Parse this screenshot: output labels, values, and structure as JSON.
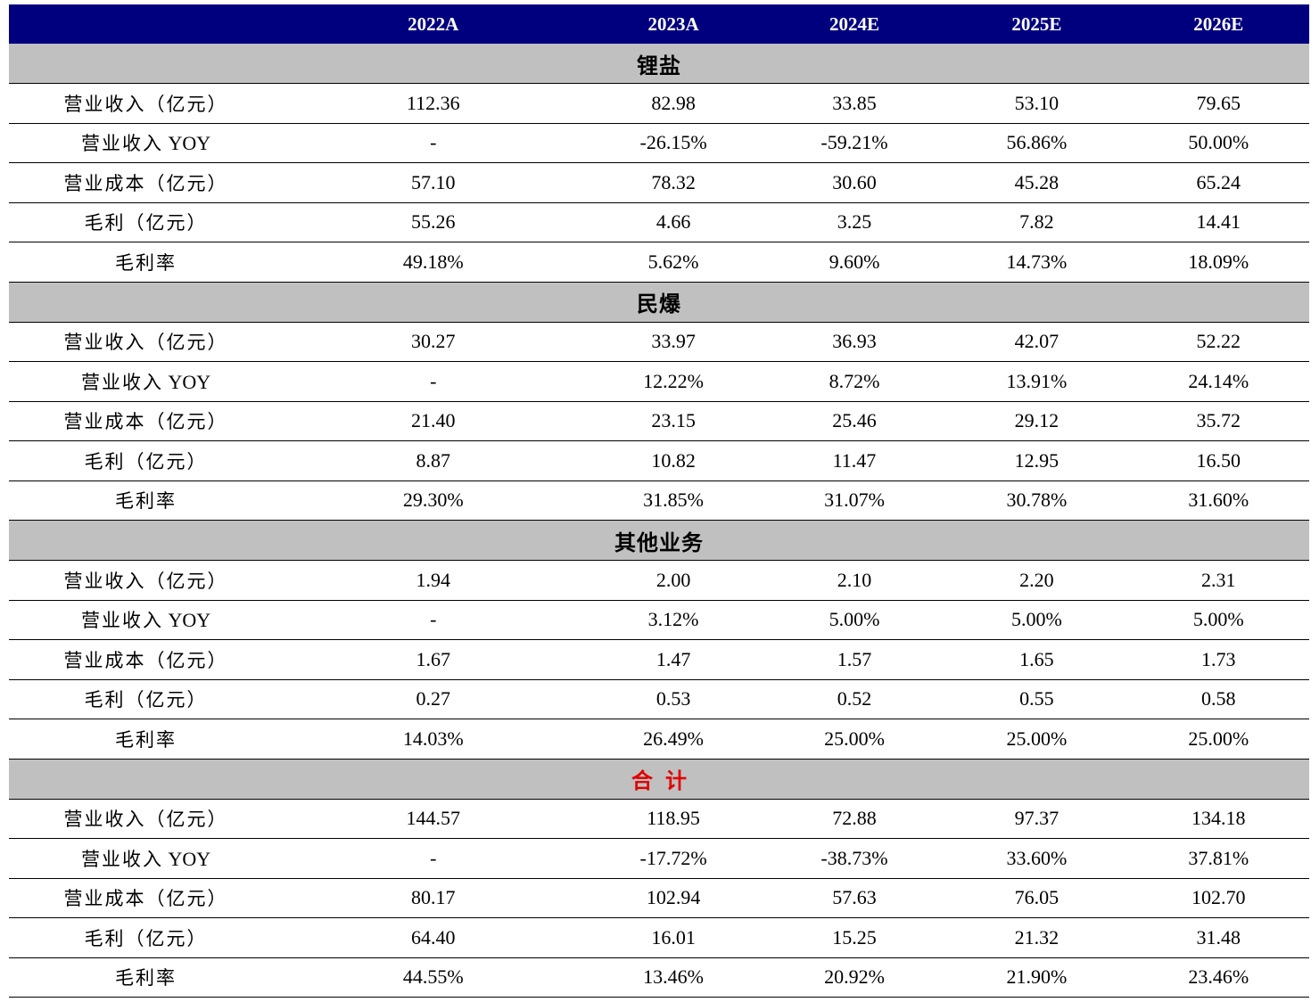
{
  "header": {
    "blank": "",
    "years": [
      "2022A",
      "2023A",
      "2024E",
      "2025E",
      "2026E"
    ]
  },
  "sections": [
    {
      "title": "锂盐",
      "rows": [
        {
          "label": "营业收入（亿元）",
          "values": [
            "112.36",
            "82.98",
            "33.85",
            "53.10",
            "79.65"
          ]
        },
        {
          "label": "营业收入 YOY",
          "values": [
            "-",
            "-26.15%",
            "-59.21%",
            "56.86%",
            "50.00%"
          ]
        },
        {
          "label": "营业成本（亿元）",
          "values": [
            "57.10",
            "78.32",
            "30.60",
            "45.28",
            "65.24"
          ]
        },
        {
          "label": "毛利（亿元）",
          "values": [
            "55.26",
            "4.66",
            "3.25",
            "7.82",
            "14.41"
          ]
        },
        {
          "label": "毛利率",
          "values": [
            "49.18%",
            "5.62%",
            "9.60%",
            "14.73%",
            "18.09%"
          ]
        }
      ]
    },
    {
      "title": "民爆",
      "rows": [
        {
          "label": "营业收入（亿元）",
          "values": [
            "30.27",
            "33.97",
            "36.93",
            "42.07",
            "52.22"
          ]
        },
        {
          "label": "营业收入 YOY",
          "values": [
            "-",
            "12.22%",
            "8.72%",
            "13.91%",
            "24.14%"
          ]
        },
        {
          "label": "营业成本（亿元）",
          "values": [
            "21.40",
            "23.15",
            "25.46",
            "29.12",
            "35.72"
          ]
        },
        {
          "label": "毛利（亿元）",
          "values": [
            "8.87",
            "10.82",
            "11.47",
            "12.95",
            "16.50"
          ]
        },
        {
          "label": "毛利率",
          "values": [
            "29.30%",
            "31.85%",
            "31.07%",
            "30.78%",
            "31.60%"
          ]
        }
      ]
    },
    {
      "title": "其他业务",
      "rows": [
        {
          "label": "营业收入（亿元）",
          "values": [
            "1.94",
            "2.00",
            "2.10",
            "2.20",
            "2.31"
          ]
        },
        {
          "label": "营业收入 YOY",
          "values": [
            "-",
            "3.12%",
            "5.00%",
            "5.00%",
            "5.00%"
          ]
        },
        {
          "label": "营业成本（亿元）",
          "values": [
            "1.67",
            "1.47",
            "1.57",
            "1.65",
            "1.73"
          ]
        },
        {
          "label": "毛利（亿元）",
          "values": [
            "0.27",
            "0.53",
            "0.52",
            "0.55",
            "0.58"
          ]
        },
        {
          "label": "毛利率",
          "values": [
            "14.03%",
            "26.49%",
            "25.00%",
            "25.00%",
            "25.00%"
          ]
        }
      ]
    },
    {
      "title": "合计",
      "title_color": "#e00000",
      "rows": [
        {
          "label": "营业收入（亿元）",
          "values": [
            "144.57",
            "118.95",
            "72.88",
            "97.37",
            "134.18"
          ]
        },
        {
          "label": "营业收入 YOY",
          "values": [
            "-",
            "-17.72%",
            "-38.73%",
            "33.60%",
            "37.81%"
          ]
        },
        {
          "label": "营业成本（亿元）",
          "values": [
            "80.17",
            "102.94",
            "57.63",
            "76.05",
            "102.70"
          ]
        },
        {
          "label": "毛利（亿元）",
          "values": [
            "64.40",
            "16.01",
            "15.25",
            "21.32",
            "31.48"
          ]
        },
        {
          "label": "毛利率",
          "values": [
            "44.55%",
            "13.46%",
            "20.92%",
            "21.90%",
            "23.46%"
          ]
        }
      ]
    }
  ],
  "colors": {
    "header_bg": "#00007f",
    "header_text": "#ffffff",
    "section_bg": "#c0c0c0",
    "total_title": "#e00000",
    "rule": "#000000"
  }
}
